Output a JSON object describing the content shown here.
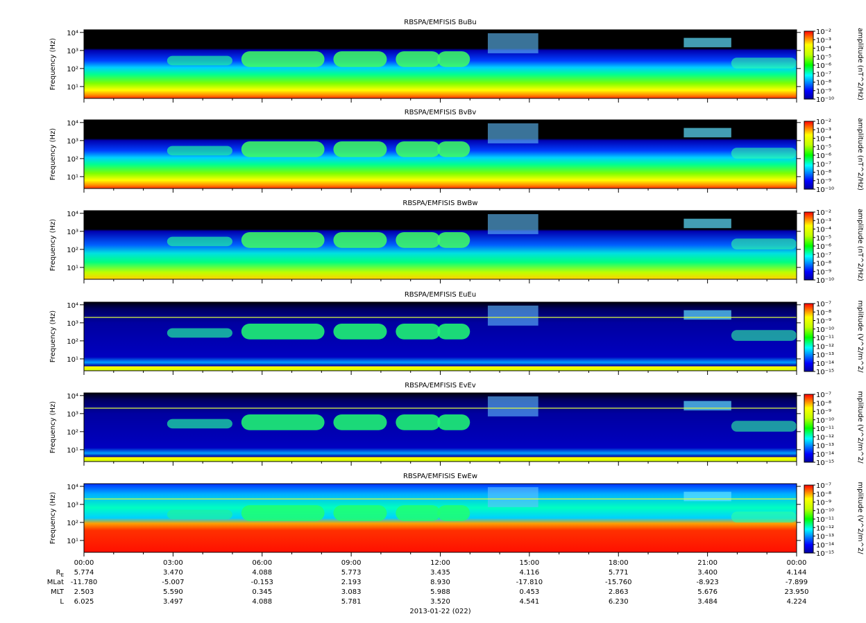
{
  "chart_data": [
    {
      "type": "spectrogram",
      "title": "RBSPA/EMFISIS  BuBu",
      "ylabel": "Frequency (Hz)",
      "ylim": [
        2.2,
        14000
      ],
      "log_y": true,
      "yticks": [
        {
          "value": 10,
          "label": "10¹"
        },
        {
          "value": 100,
          "label": "10²"
        },
        {
          "value": 1000,
          "label": "10³"
        },
        {
          "value": 10000,
          "label": "10⁴"
        }
      ],
      "zlabel": "amplitude (nT^2/Hz)",
      "zlim": [
        -10,
        -2
      ],
      "zticks": [
        {
          "value": -2,
          "label": "10⁻²"
        },
        {
          "value": -3,
          "label": "10⁻³"
        },
        {
          "value": -4,
          "label": "10⁻⁴"
        },
        {
          "value": -5,
          "label": "10⁻⁵"
        },
        {
          "value": -6,
          "label": "10⁻⁶"
        },
        {
          "value": -7,
          "label": "10⁻⁷"
        },
        {
          "value": -8,
          "label": "10⁻⁸"
        },
        {
          "value": -9,
          "label": "10⁻⁹"
        },
        {
          "value": -10,
          "label": "10⁻¹⁰"
        }
      ]
    },
    {
      "type": "spectrogram",
      "title": "RBSPA/EMFISIS  BvBv",
      "ylabel": "Frequency (Hz)",
      "ylim": [
        2.2,
        14000
      ],
      "log_y": true,
      "yticks": [
        {
          "value": 10,
          "label": "10¹"
        },
        {
          "value": 100,
          "label": "10²"
        },
        {
          "value": 1000,
          "label": "10³"
        },
        {
          "value": 10000,
          "label": "10⁴"
        }
      ],
      "zlabel": "amplitude (nT^2/Hz)",
      "zlim": [
        -10,
        -2
      ],
      "zticks": [
        {
          "value": -2,
          "label": "10⁻²"
        },
        {
          "value": -3,
          "label": "10⁻³"
        },
        {
          "value": -4,
          "label": "10⁻⁴"
        },
        {
          "value": -5,
          "label": "10⁻⁵"
        },
        {
          "value": -6,
          "label": "10⁻⁶"
        },
        {
          "value": -7,
          "label": "10⁻⁷"
        },
        {
          "value": -8,
          "label": "10⁻⁸"
        },
        {
          "value": -9,
          "label": "10⁻⁹"
        },
        {
          "value": -10,
          "label": "10⁻¹⁰"
        }
      ]
    },
    {
      "type": "spectrogram",
      "title": "RBSPA/EMFISIS  BwBw",
      "ylabel": "Frequency (Hz)",
      "ylim": [
        2.2,
        14000
      ],
      "log_y": true,
      "yticks": [
        {
          "value": 10,
          "label": "10¹"
        },
        {
          "value": 100,
          "label": "10²"
        },
        {
          "value": 1000,
          "label": "10³"
        },
        {
          "value": 10000,
          "label": "10⁴"
        }
      ],
      "zlabel": "amplitude (nT^2/Hz)",
      "zlim": [
        -10,
        -2
      ],
      "zticks": [
        {
          "value": -2,
          "label": "10⁻²"
        },
        {
          "value": -3,
          "label": "10⁻³"
        },
        {
          "value": -4,
          "label": "10⁻⁴"
        },
        {
          "value": -5,
          "label": "10⁻⁵"
        },
        {
          "value": -6,
          "label": "10⁻⁶"
        },
        {
          "value": -7,
          "label": "10⁻⁷"
        },
        {
          "value": -8,
          "label": "10⁻⁸"
        },
        {
          "value": -9,
          "label": "10⁻⁹"
        },
        {
          "value": -10,
          "label": "10⁻¹⁰"
        }
      ]
    },
    {
      "type": "spectrogram",
      "title": "RBSPA/EMFISIS  EuEu",
      "ylabel": "Frequency (Hz)",
      "ylim": [
        2.2,
        14000
      ],
      "log_y": true,
      "yticks": [
        {
          "value": 10,
          "label": "10¹"
        },
        {
          "value": 100,
          "label": "10²"
        },
        {
          "value": 1000,
          "label": "10³"
        },
        {
          "value": 10000,
          "label": "10⁴"
        }
      ],
      "zlabel": "mplitude (V^2/m^2/",
      "zlim": [
        -15,
        -7
      ],
      "zticks": [
        {
          "value": -7,
          "label": "10⁻⁷"
        },
        {
          "value": -8,
          "label": "10⁻⁸"
        },
        {
          "value": -9,
          "label": "10⁻⁹"
        },
        {
          "value": -10,
          "label": "10⁻¹⁰"
        },
        {
          "value": -11,
          "label": "10⁻¹¹"
        },
        {
          "value": -12,
          "label": "10⁻¹²"
        },
        {
          "value": -13,
          "label": "10⁻¹³"
        },
        {
          "value": -14,
          "label": "10⁻¹⁴"
        },
        {
          "value": -15,
          "label": "10⁻¹⁵"
        }
      ]
    },
    {
      "type": "spectrogram",
      "title": "RBSPA/EMFISIS  EvEv",
      "ylabel": "Frequency (Hz)",
      "ylim": [
        2.2,
        14000
      ],
      "log_y": true,
      "yticks": [
        {
          "value": 10,
          "label": "10¹"
        },
        {
          "value": 100,
          "label": "10²"
        },
        {
          "value": 1000,
          "label": "10³"
        },
        {
          "value": 10000,
          "label": "10⁴"
        }
      ],
      "zlabel": "mplitude (V^2/m^2/",
      "zlim": [
        -15,
        -7
      ],
      "zticks": [
        {
          "value": -7,
          "label": "10⁻⁷"
        },
        {
          "value": -8,
          "label": "10⁻⁸"
        },
        {
          "value": -9,
          "label": "10⁻⁹"
        },
        {
          "value": -10,
          "label": "10⁻¹⁰"
        },
        {
          "value": -11,
          "label": "10⁻¹¹"
        },
        {
          "value": -12,
          "label": "10⁻¹²"
        },
        {
          "value": -13,
          "label": "10⁻¹³"
        },
        {
          "value": -14,
          "label": "10⁻¹⁴"
        },
        {
          "value": -15,
          "label": "10⁻¹⁵"
        }
      ]
    },
    {
      "type": "spectrogram",
      "title": "RBSPA/EMFISIS  EwEw",
      "ylabel": "Frequency (Hz)",
      "ylim": [
        2.2,
        14000
      ],
      "log_y": true,
      "yticks": [
        {
          "value": 10,
          "label": "10¹"
        },
        {
          "value": 100,
          "label": "10²"
        },
        {
          "value": 1000,
          "label": "10³"
        },
        {
          "value": 10000,
          "label": "10⁴"
        }
      ],
      "zlabel": "mplitude (V^2/m^2/",
      "zlim": [
        -15,
        -7
      ],
      "zticks": [
        {
          "value": -7,
          "label": "10⁻⁷"
        },
        {
          "value": -8,
          "label": "10⁻⁸"
        },
        {
          "value": -9,
          "label": "10⁻⁹"
        },
        {
          "value": -10,
          "label": "10⁻¹⁰"
        },
        {
          "value": -11,
          "label": "10⁻¹¹"
        },
        {
          "value": -12,
          "label": "10⁻¹²"
        },
        {
          "value": -13,
          "label": "10⁻¹³"
        },
        {
          "value": -14,
          "label": "10⁻¹⁴"
        },
        {
          "value": -15,
          "label": "10⁻¹⁵"
        }
      ]
    }
  ],
  "time_axis": {
    "xlim": [
      0,
      24
    ],
    "xticks": [
      {
        "value": 0,
        "label": "00:00"
      },
      {
        "value": 3,
        "label": "03:00"
      },
      {
        "value": 6,
        "label": "06:00"
      },
      {
        "value": 9,
        "label": "09:00"
      },
      {
        "value": 12,
        "label": "12:00"
      },
      {
        "value": 15,
        "label": "15:00"
      },
      {
        "value": 18,
        "label": "18:00"
      },
      {
        "value": 21,
        "label": "21:00"
      },
      {
        "value": 24,
        "label": "00:00"
      }
    ],
    "xlabel": "2013-01-22 (022)"
  },
  "ephemeris": [
    {
      "label": "R",
      "subscript": "E",
      "values": [
        "5.774",
        "3.470",
        "4.088",
        "5.773",
        "3.435",
        "4.116",
        "5.771",
        "3.400",
        "4.144"
      ]
    },
    {
      "label": "MLat",
      "values": [
        "-11.780",
        "-5.007",
        "-0.153",
        "2.193",
        "8.930",
        "-17.810",
        "-15.760",
        "-8.923",
        "-7.899"
      ]
    },
    {
      "label": "MLT",
      "values": [
        "2.503",
        "5.590",
        "0.345",
        "3.083",
        "5.988",
        "0.453",
        "2.863",
        "5.676",
        "23.950"
      ]
    },
    {
      "label": "L",
      "values": [
        "6.025",
        "3.497",
        "4.088",
        "5.781",
        "3.520",
        "4.541",
        "6.230",
        "3.484",
        "4.224"
      ]
    }
  ]
}
